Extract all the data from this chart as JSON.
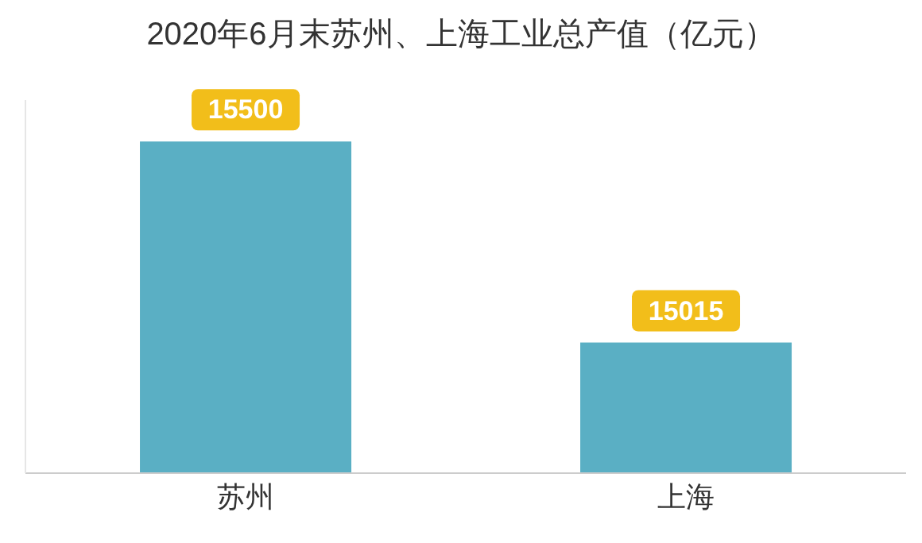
{
  "chart_data": {
    "type": "bar",
    "title": "2020年6月末苏州、上海工业总产值（亿元）",
    "categories": [
      "苏州",
      "上海"
    ],
    "values": [
      15500,
      15015
    ],
    "color": "#5aafc4",
    "ylim": [
      14700,
      15600
    ],
    "tick_labels": "x",
    "data_labels": true,
    "grid": false
  }
}
